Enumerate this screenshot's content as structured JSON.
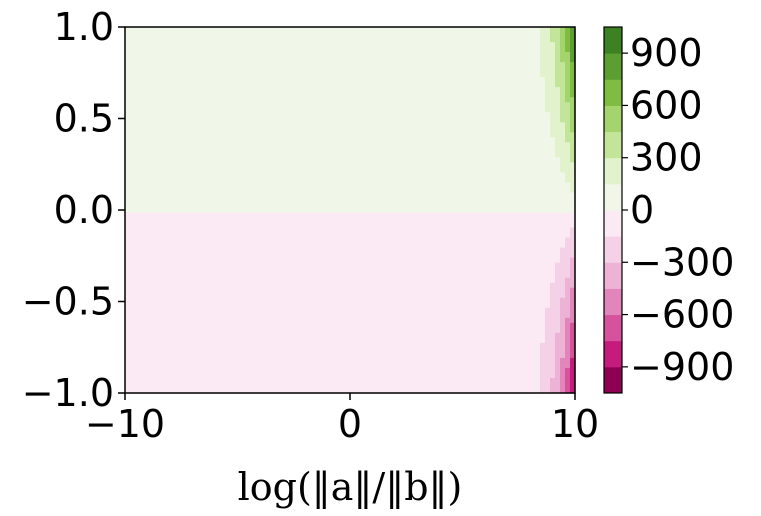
{
  "chart_data": {
    "type": "heatmap",
    "title": "",
    "xlabel": "log(‖a‖/‖b‖)",
    "ylabel": "",
    "xlim": [
      -10,
      10
    ],
    "ylim": [
      -1,
      1
    ],
    "x_ticks": [
      "−10",
      "0",
      "10"
    ],
    "y_ticks": [
      "1.0",
      "0.5",
      "0.0",
      "−0.5",
      "−1.0"
    ],
    "x_tick_values": [
      -10,
      0,
      10
    ],
    "y_tick_values": [
      1.0,
      0.5,
      0.0,
      -0.5,
      -1.0
    ],
    "grid": false,
    "colormap": "PiYG",
    "colorbar": {
      "levels": [
        -1050,
        -900,
        -750,
        -600,
        -450,
        -300,
        -150,
        0,
        150,
        300,
        450,
        600,
        750,
        900,
        1050
      ],
      "colors": [
        "#8e0152",
        "#c51b7d",
        "#d6529d",
        "#e185bb",
        "#edb3d7",
        "#f5d1e8",
        "#fbeaf3",
        "#f1f7e8",
        "#e2f2cc",
        "#c2e59a",
        "#a3d46d",
        "#7fbc41",
        "#5c9e31",
        "#3c8222",
        "#276419"
      ],
      "tick_labels": [
        "900",
        "600",
        "300",
        "0",
        "−300",
        "−600",
        "−900"
      ],
      "tick_values": [
        900,
        600,
        300,
        0,
        -300,
        -600,
        -900
      ]
    },
    "description_of_field": "Values near 0 over most of the domain; positive (green) for y>0 and negative (pink) for y<0; magnitude grows steeply as x approaches 10, reaching about ±1000 at the right edge near y=±1."
  }
}
